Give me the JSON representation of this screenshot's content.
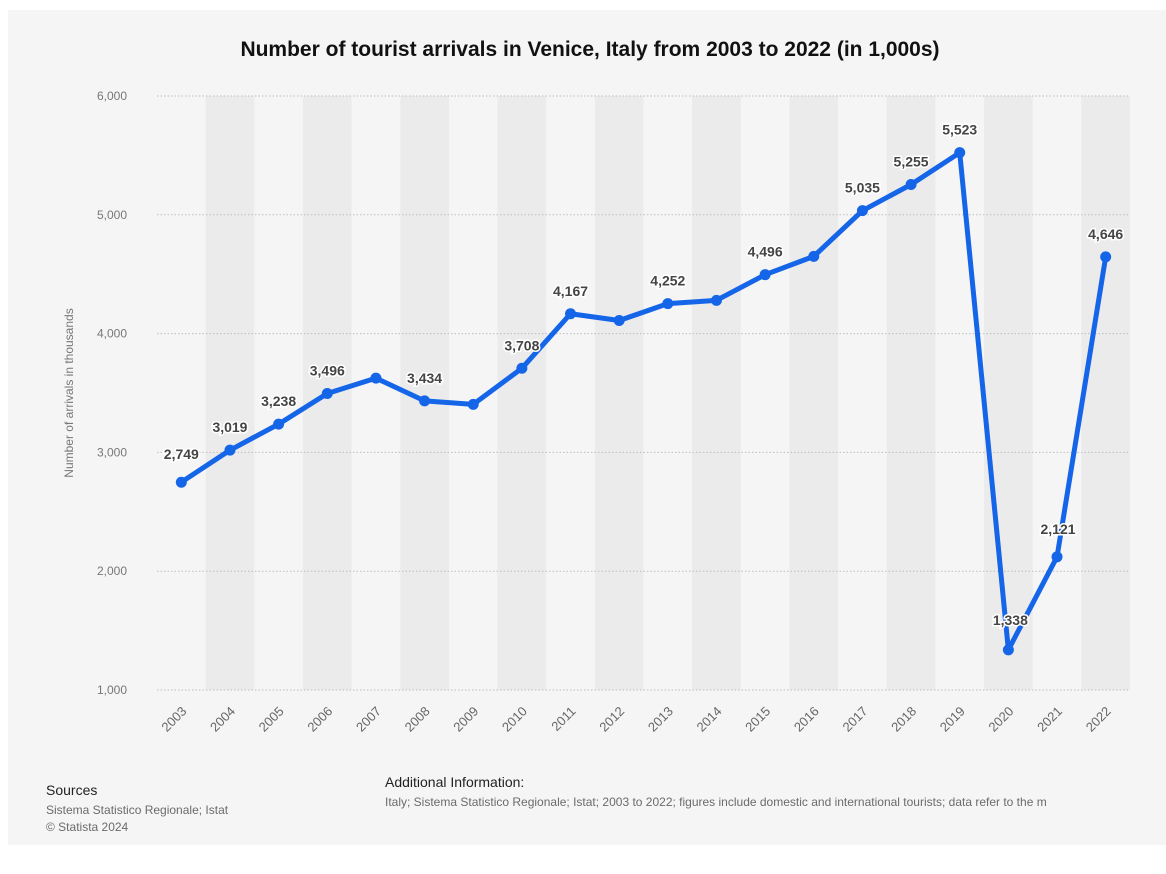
{
  "chart_data": {
    "type": "line",
    "title": "Number of tourist arrivals in Venice, Italy from 2003 to 2022 (in 1,000s)",
    "ylabel": "Number of arrivals in thousands",
    "xlabel": "",
    "ylim": [
      1000,
      6000
    ],
    "yticks": [
      "1,000",
      "2,000",
      "3,000",
      "4,000",
      "5,000",
      "6,000"
    ],
    "ytick_values": [
      1000,
      2000,
      3000,
      4000,
      5000,
      6000
    ],
    "categories": [
      "2003",
      "2004",
      "2005",
      "2006",
      "2007",
      "2008",
      "2009",
      "2010",
      "2011",
      "2012",
      "2013",
      "2014",
      "2015",
      "2016",
      "2017",
      "2018",
      "2019",
      "2020",
      "2021",
      "2022"
    ],
    "values": [
      2749,
      3019,
      3238,
      3496,
      3625,
      3434,
      3404,
      3708,
      4167,
      4110,
      4252,
      4280,
      4496,
      4650,
      5035,
      5255,
      5523,
      1338,
      2121,
      4646
    ],
    "data_labels": [
      "2,749",
      "3,019",
      "3,238",
      "3,496",
      "",
      "3,434",
      "",
      "3,708",
      "4,167",
      "",
      "4,252",
      "",
      "4,496",
      "",
      "5,035",
      "5,255",
      "5,523",
      "1,338",
      "2,121",
      "4,646"
    ],
    "color": "#1565e8",
    "grid": true
  },
  "footer": {
    "sources_heading": "Sources",
    "sources_line1": "Sistema Statistico Regionale; Istat",
    "sources_line2": "© Statista 2024",
    "addinfo_heading": "Additional Information:",
    "addinfo_text": "Italy; Sistema Statistico Regionale; Istat; 2003 to 2022; figures include domestic and international tourists; data refer to the m"
  }
}
